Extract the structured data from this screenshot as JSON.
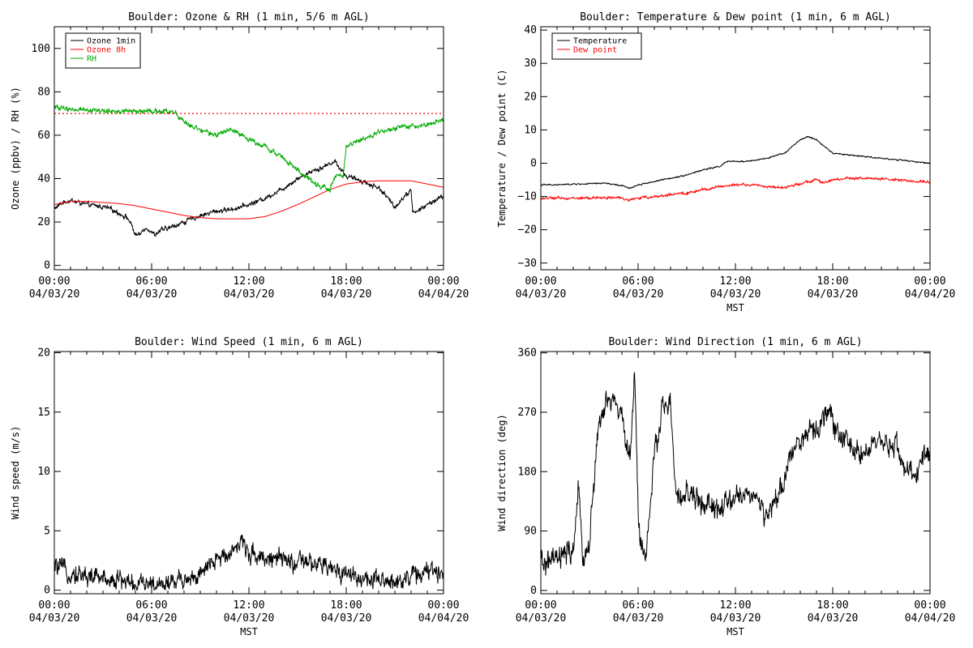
{
  "chart_data": [
    {
      "type": "line",
      "title": "Boulder: Ozone & RH (1 min, 5/6 m AGL)",
      "ylabel": "Ozone (ppbv) / RH (%)",
      "xlabel": "",
      "xlim": [
        0,
        24
      ],
      "ylim": [
        -2,
        110
      ],
      "yticks": [
        "0",
        "20",
        "40",
        "60",
        "80",
        "100"
      ],
      "ytick_values": [
        0,
        20,
        40,
        60,
        80,
        100
      ],
      "xticks": [
        {
          "time": "00:00",
          "date": "04/03/20"
        },
        {
          "time": "06:00",
          "date": "04/03/20"
        },
        {
          "time": "12:00",
          "date": "04/03/20"
        },
        {
          "time": "18:00",
          "date": "04/03/20"
        },
        {
          "time": "00:00",
          "date": "04/04/20"
        }
      ],
      "legend": "top-left",
      "reference_line": {
        "y": 70,
        "color": "#ff0000",
        "style": "dotted"
      },
      "series": [
        {
          "name": "Ozone 1min",
          "color": "#000000",
          "noise": 1.3,
          "x": [
            0,
            0.5,
            1,
            2,
            3,
            3.5,
            4,
            4.5,
            4.8,
            5,
            5.3,
            5.5,
            5.8,
            6.2,
            6.5,
            7,
            8,
            9,
            10,
            11,
            12,
            13,
            14,
            15,
            16,
            16.5,
            17,
            17.3,
            17.6,
            18,
            19,
            19.5,
            20,
            21,
            22,
            22.1,
            22.2,
            23,
            24
          ],
          "y": [
            26,
            29,
            30,
            28,
            27,
            26,
            24,
            22,
            18,
            14,
            14,
            17,
            17,
            14,
            16,
            17,
            20,
            23,
            25,
            26,
            28,
            31,
            35,
            40,
            44,
            45,
            47,
            48,
            45,
            41,
            39,
            37,
            36,
            27,
            35,
            25,
            24,
            28,
            32
          ]
        },
        {
          "name": "Ozone 8h",
          "color": "#ff0000",
          "noise": 0,
          "x": [
            0,
            1,
            2,
            3,
            4,
            5,
            6,
            7,
            8,
            9,
            10,
            11,
            12,
            13,
            14,
            15,
            16,
            17,
            18,
            19,
            20,
            21,
            22,
            23,
            24
          ],
          "y": [
            28,
            29.5,
            29.5,
            29,
            28.5,
            27.5,
            26,
            24.5,
            23,
            22,
            21.5,
            21.5,
            21.5,
            22.5,
            25,
            28,
            31.5,
            35,
            37.5,
            38.5,
            39,
            39,
            39,
            37.5,
            36
          ]
        },
        {
          "name": "RH",
          "color": "#00aa00",
          "noise": 1.4,
          "x": [
            0,
            1,
            2,
            3,
            4,
            5,
            6,
            7,
            7.5,
            8,
            9,
            10,
            11,
            11.5,
            12,
            13,
            14,
            15,
            16,
            16.5,
            17,
            17.2,
            17.5,
            17.8,
            18,
            19,
            20,
            21,
            22,
            23,
            24
          ],
          "y": [
            73,
            72,
            72,
            71,
            71,
            71,
            71,
            71,
            70,
            66,
            62,
            60,
            63,
            60,
            58,
            55,
            50,
            44,
            38,
            36,
            35,
            40,
            42,
            40,
            55,
            58,
            61,
            63,
            64,
            65,
            67
          ]
        }
      ]
    },
    {
      "type": "line",
      "title": "Boulder: Temperature & Dew point (1 min, 6 m AGL)",
      "ylabel": "Temperature / Dew point (C)",
      "xlabel": "MST",
      "xlim": [
        0,
        24
      ],
      "ylim": [
        -32,
        41
      ],
      "yticks": [
        "−30",
        "−20",
        "−10",
        "0",
        "10",
        "20",
        "30",
        "40"
      ],
      "ytick_values": [
        -30,
        -20,
        -10,
        0,
        10,
        20,
        30,
        40
      ],
      "xticks": [
        {
          "time": "00:00",
          "date": "04/03/20"
        },
        {
          "time": "06:00",
          "date": "04/03/20"
        },
        {
          "time": "12:00",
          "date": "04/03/20"
        },
        {
          "time": "18:00",
          "date": "04/03/20"
        },
        {
          "time": "00:00",
          "date": "04/04/20"
        }
      ],
      "legend": "top-left",
      "series": [
        {
          "name": "Temperature",
          "color": "#000000",
          "noise": 0.25,
          "x": [
            0,
            1,
            2,
            3,
            4,
            5,
            5.5,
            6,
            7,
            8,
            9,
            10,
            11,
            11.5,
            12,
            13,
            14,
            15,
            15.5,
            16,
            16.5,
            17,
            17.5,
            18,
            19,
            20,
            21,
            22,
            23,
            24
          ],
          "y": [
            -6.5,
            -6.5,
            -6.3,
            -6.2,
            -6,
            -6.8,
            -7.5,
            -6.5,
            -5.5,
            -4.5,
            -3.5,
            -2,
            -1,
            0.5,
            0.5,
            0.7,
            1.5,
            3,
            5,
            7,
            8,
            7,
            5,
            3,
            2.5,
            2,
            1.5,
            1,
            0.5,
            0
          ]
        },
        {
          "name": "Dew point",
          "color": "#ff0000",
          "noise": 0.45,
          "x": [
            0,
            1,
            2,
            3,
            4,
            5,
            5.5,
            6,
            7,
            8,
            9,
            10,
            11,
            12,
            13,
            14,
            15,
            16,
            17,
            17.5,
            18,
            19,
            20,
            21,
            22,
            23,
            24
          ],
          "y": [
            -10.5,
            -10.5,
            -10.5,
            -10.5,
            -10.3,
            -10.5,
            -11,
            -10.5,
            -10,
            -9.5,
            -9,
            -8,
            -7,
            -6.5,
            -6.5,
            -7,
            -7.5,
            -6,
            -5,
            -6,
            -5,
            -4.5,
            -4.5,
            -4.8,
            -5,
            -5.5,
            -5.5
          ]
        }
      ]
    },
    {
      "type": "line",
      "title": "Boulder: Wind Speed (1 min, 6 m AGL)",
      "ylabel": "Wind speed (m/s)",
      "xlabel": "MST",
      "xlim": [
        0,
        24
      ],
      "ylim": [
        -0.3,
        20.1
      ],
      "yticks": [
        "0",
        "5",
        "10",
        "15",
        "20"
      ],
      "ytick_values": [
        0,
        5,
        10,
        15,
        20
      ],
      "xticks": [
        {
          "time": "00:00",
          "date": "04/03/20"
        },
        {
          "time": "06:00",
          "date": "04/03/20"
        },
        {
          "time": "12:00",
          "date": "04/03/20"
        },
        {
          "time": "18:00",
          "date": "04/03/20"
        },
        {
          "time": "00:00",
          "date": "04/04/20"
        }
      ],
      "series": [
        {
          "color": "#000000",
          "noise": 1.0,
          "floor": 0,
          "x": [
            0,
            1,
            2,
            3,
            4,
            5,
            6,
            7,
            8,
            9,
            10,
            11,
            11.5,
            12,
            13,
            14,
            15,
            16,
            17,
            18,
            19,
            20,
            21,
            22,
            23,
            24
          ],
          "y": [
            2,
            1.5,
            1.2,
            1,
            0.9,
            0.5,
            0.5,
            0.7,
            1,
            1.2,
            2.5,
            3.5,
            4,
            3.2,
            2.8,
            2.5,
            2.3,
            2.2,
            1.8,
            1.5,
            1.0,
            0.6,
            0.8,
            1.2,
            1.5,
            1.5
          ]
        }
      ]
    },
    {
      "type": "line",
      "title": "Boulder: Wind Direction (1 min, 6 m AGL)",
      "ylabel": "Wind direction (deg)",
      "xlabel": "MST",
      "xlim": [
        0,
        24
      ],
      "ylim": [
        -5,
        362
      ],
      "yticks": [
        "0",
        "90",
        "180",
        "270",
        "360"
      ],
      "ytick_values": [
        0,
        90,
        180,
        270,
        360
      ],
      "xticks": [
        {
          "time": "00:00",
          "date": "04/03/20"
        },
        {
          "time": "06:00",
          "date": "04/03/20"
        },
        {
          "time": "12:00",
          "date": "04/03/20"
        },
        {
          "time": "18:00",
          "date": "04/03/20"
        },
        {
          "time": "00:00",
          "date": "04/04/20"
        }
      ],
      "series": [
        {
          "color": "#000000",
          "noise": 22,
          "floor": 0,
          "ceil": 360,
          "x": [
            0,
            1,
            2,
            2.3,
            2.6,
            3,
            3.5,
            4,
            4.5,
            5,
            5.5,
            5.8,
            6,
            6.2,
            6.5,
            7,
            7.5,
            8,
            8.3,
            8.6,
            9,
            10,
            11,
            12,
            13,
            14,
            15,
            15.5,
            16,
            17,
            17.5,
            18,
            18.5,
            19,
            20,
            21,
            22,
            22.5,
            23,
            23.5,
            24
          ],
          "y": [
            40,
            45,
            60,
            150,
            50,
            70,
            240,
            280,
            290,
            260,
            200,
            330,
            120,
            60,
            60,
            200,
            280,
            280,
            150,
            130,
            150,
            130,
            120,
            140,
            150,
            110,
            160,
            220,
            230,
            240,
            270,
            260,
            230,
            220,
            210,
            220,
            220,
            180,
            170,
            200,
            210
          ]
        }
      ]
    }
  ]
}
